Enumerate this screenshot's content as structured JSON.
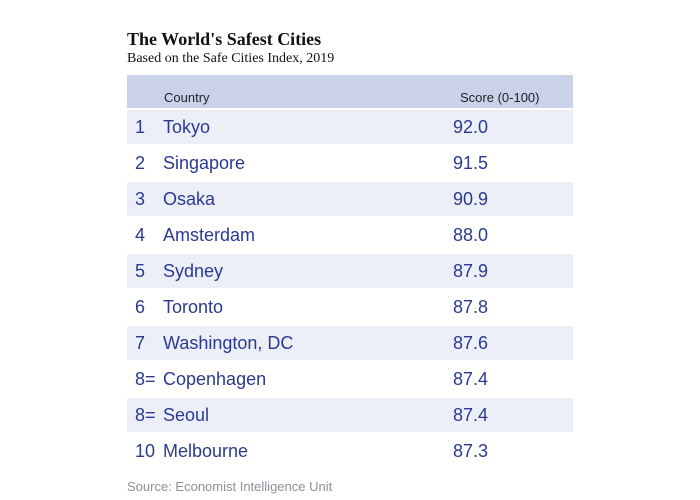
{
  "title": "The World's Safest Cities",
  "subtitle": "Based on the Safe Cities Index, 2019",
  "source": "Source: Economist Intelligence Unit",
  "chart_data": {
    "type": "table",
    "title": "The World's Safest Cities",
    "subtitle": "Based on the Safe Cities Index, 2019",
    "columns": [
      "",
      "Country",
      "Score (0-100)"
    ],
    "rows": [
      {
        "rank": "1",
        "city": "Tokyo",
        "score": "92.0"
      },
      {
        "rank": "2",
        "city": "Singapore",
        "score": "91.5"
      },
      {
        "rank": "3",
        "city": "Osaka",
        "score": "90.9"
      },
      {
        "rank": "4",
        "city": "Amsterdam",
        "score": "88.0"
      },
      {
        "rank": "5",
        "city": "Sydney",
        "score": "87.9"
      },
      {
        "rank": "6",
        "city": "Toronto",
        "score": "87.8"
      },
      {
        "rank": "7",
        "city": "Washington, DC",
        "score": "87.6"
      },
      {
        "rank": "8=",
        "city": "Copenhagen",
        "score": "87.4"
      },
      {
        "rank": "8=",
        "city": "Seoul",
        "score": "87.4"
      },
      {
        "rank": "10",
        "city": "Melbourne",
        "score": "87.3"
      }
    ],
    "colors": {
      "header_bg": "#c9d2e9",
      "row_alt_bg": "#eceff8",
      "text": "#2b3a8f"
    }
  }
}
